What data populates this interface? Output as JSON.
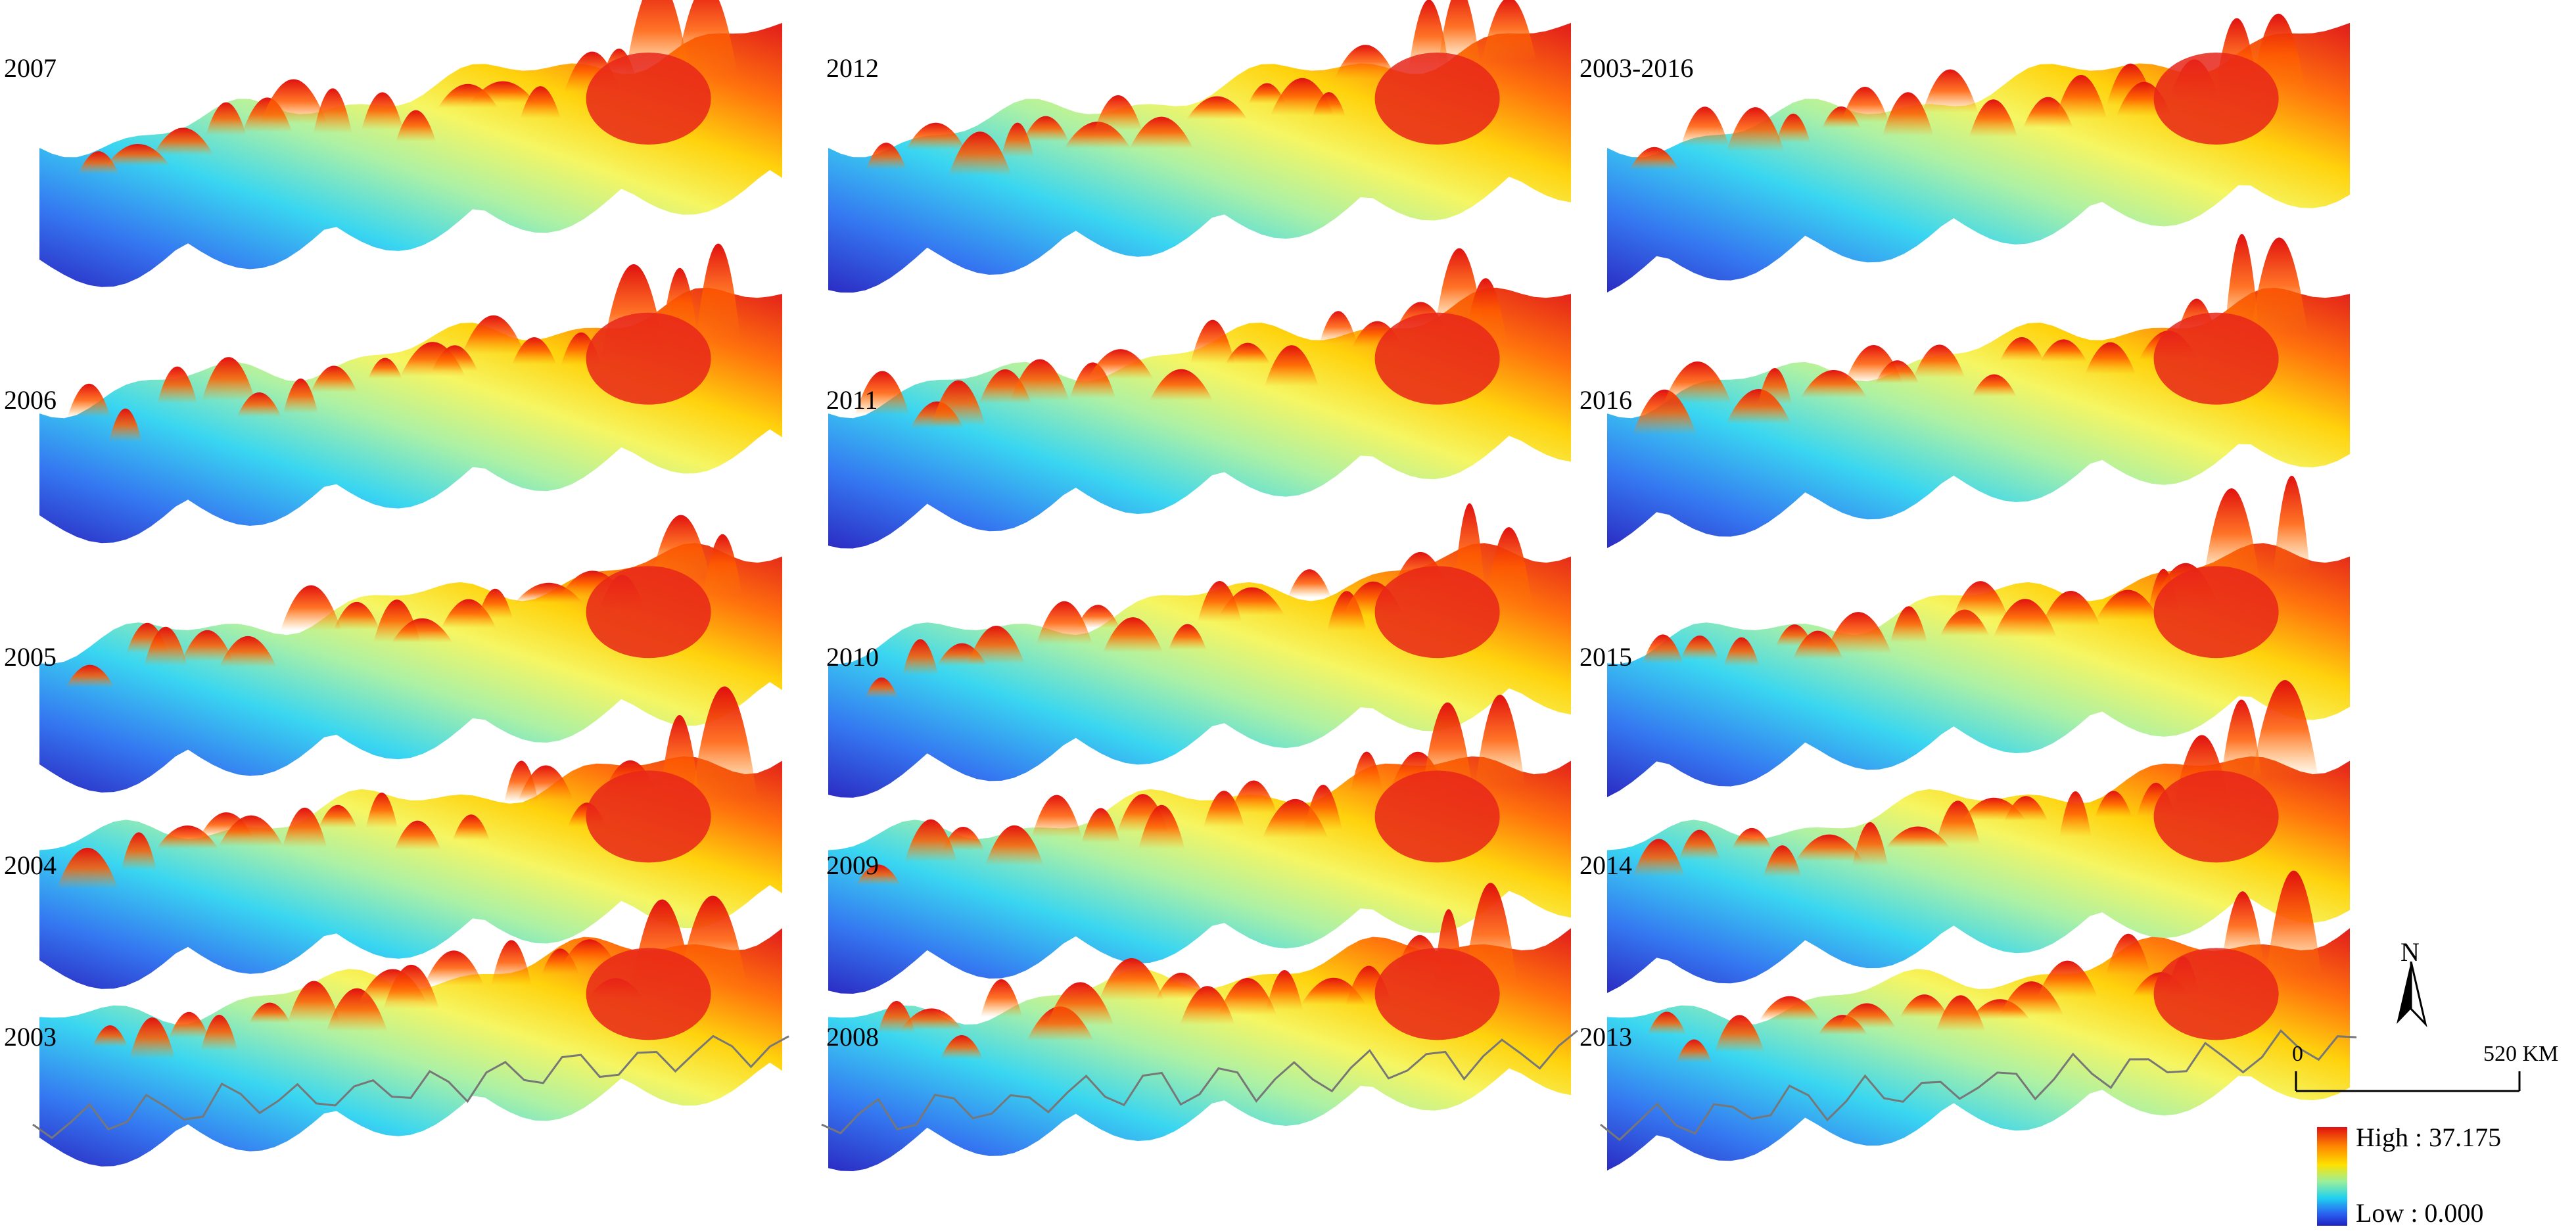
{
  "panels": [
    {
      "label": "2007"
    },
    {
      "label": "2012"
    },
    {
      "label": "2003-2016"
    },
    {
      "label": "2006"
    },
    {
      "label": "2011"
    },
    {
      "label": "2016"
    },
    {
      "label": "2005"
    },
    {
      "label": "2010"
    },
    {
      "label": "2015"
    },
    {
      "label": "2004"
    },
    {
      "label": "2009"
    },
    {
      "label": "2014"
    },
    {
      "label": "2003"
    },
    {
      "label": "2008"
    },
    {
      "label": "2013"
    }
  ],
  "north_arrow": {
    "label": "N"
  },
  "scale_bar": {
    "start": "0",
    "end": "520",
    "unit": "KM"
  },
  "legend": {
    "high": "High : 37.175",
    "low": "Low : 0.000",
    "high_value": 37.175,
    "low_value": 0.0,
    "colors": [
      "#e01010",
      "#ff6a00",
      "#ffd000",
      "#f5f55a",
      "#a8f0a0",
      "#2fd4f0",
      "#2a70f0",
      "#2020c0"
    ]
  }
}
